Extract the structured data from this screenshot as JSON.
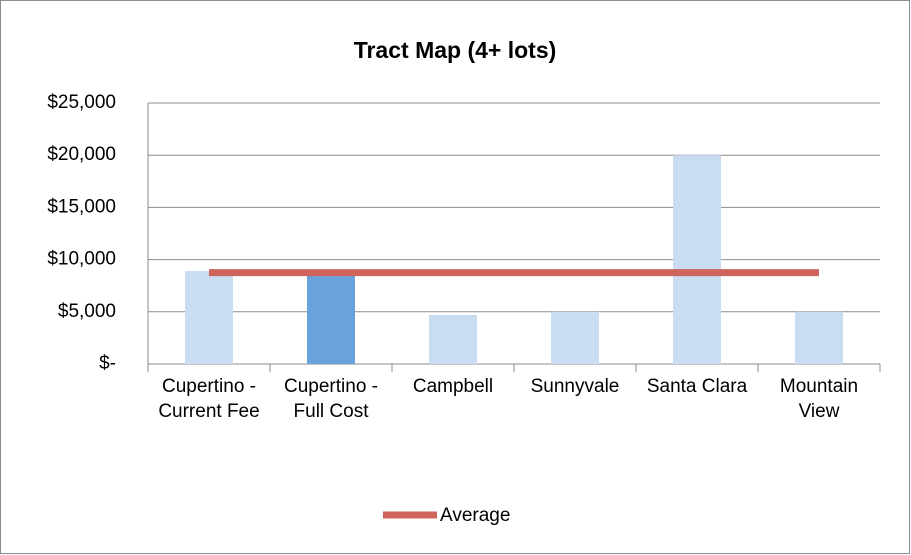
{
  "chart_data": {
    "type": "bar",
    "title": "Tract Map (4+ lots)",
    "categories": [
      "Cupertino - Current Fee",
      "Cupertino - Full Cost",
      "Campbell",
      "Sunnyvale",
      "Santa Clara",
      "Mountain View"
    ],
    "series": [
      {
        "type": "bar",
        "colors": [
          "#c9dcf1",
          "#69a2dc",
          "#c9dcf1",
          "#c9dcf1",
          "#c9dcf1",
          "#c9dcf1"
        ],
        "values": [
          8900,
          8900,
          4700,
          5000,
          20000,
          5000
        ]
      },
      {
        "type": "line",
        "name": "Average",
        "color": "#cf645d",
        "values": [
          8750,
          8750,
          8750,
          8750,
          8750,
          8750
        ]
      }
    ],
    "ylim": [
      0,
      25000
    ],
    "yticks": [
      {
        "value": 0,
        "label": "$-"
      },
      {
        "value": 5000,
        "label": "$5,000"
      },
      {
        "value": 10000,
        "label": "$10,000"
      },
      {
        "value": 15000,
        "label": "$15,000"
      },
      {
        "value": 20000,
        "label": "$20,000"
      },
      {
        "value": 25000,
        "label": "$25,000"
      }
    ],
    "grid": true,
    "legend": "bottom"
  }
}
